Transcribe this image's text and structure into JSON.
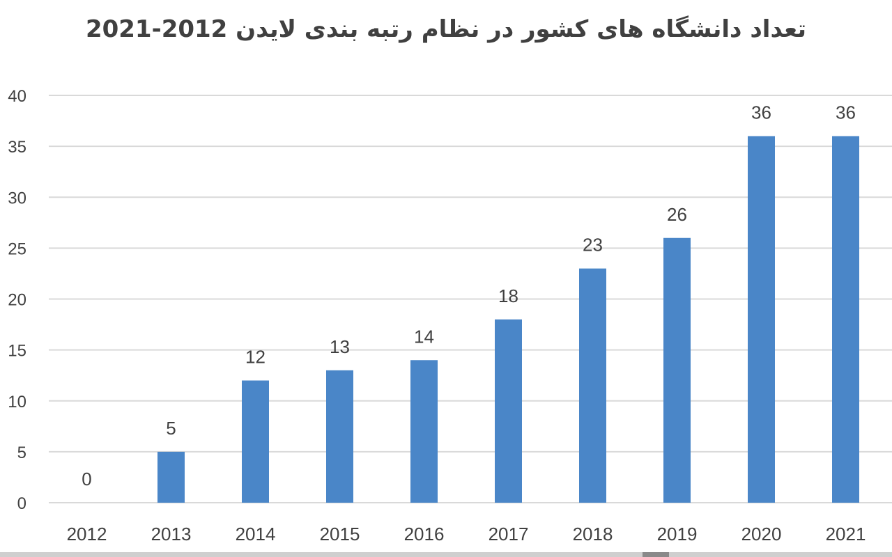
{
  "chart_data": {
    "type": "bar",
    "title": "تعداد دانشگاه های کشور در نظام رتبه بندی لایدن 2012-2021",
    "categories": [
      "2012",
      "2013",
      "2014",
      "2015",
      "2016",
      "2017",
      "2018",
      "2019",
      "2020",
      "2021"
    ],
    "values": [
      0,
      5,
      12,
      13,
      14,
      18,
      23,
      26,
      36,
      36
    ],
    "data_labels": [
      "0",
      "5",
      "12",
      "13",
      "14",
      "18",
      "23",
      "26",
      "36",
      "36"
    ],
    "y_ticks": [
      "0",
      "5",
      "10",
      "15",
      "20",
      "25",
      "30",
      "35",
      "40"
    ],
    "ylim": [
      0,
      40
    ],
    "xlabel": "",
    "ylabel": "",
    "grid": true,
    "legend": false,
    "colors": {
      "bar": "#4a86c8",
      "grid": "#d9d9d9",
      "text": "#404040"
    }
  }
}
